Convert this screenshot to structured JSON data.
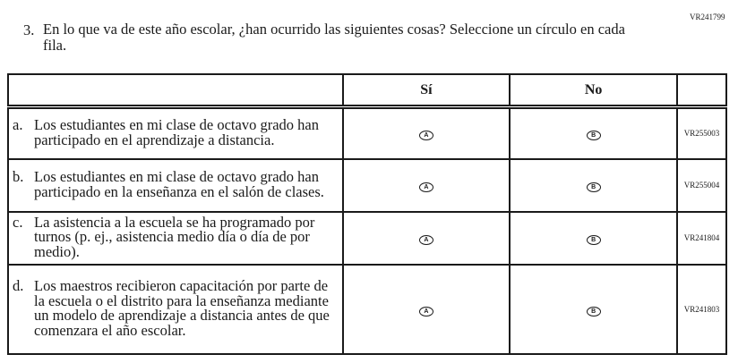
{
  "question": {
    "id": "VR241799",
    "number": "3.",
    "text": "En lo que va de este año escolar, ¿han ocurrido las siguientes cosas? Seleccione un círculo en cada fila."
  },
  "table": {
    "headers": [
      "",
      "Sí",
      "No",
      ""
    ],
    "rows": [
      {
        "letter": "a.",
        "text": "Los estudiantes en mi clase de octavo grado han participado en el aprendizaje a distancia.",
        "option_a": "A",
        "option_b": "B",
        "code": "VR255003"
      },
      {
        "letter": "b.",
        "text": "Los estudiantes en mi clase de octavo grado han participado en la enseñanza en el salón de clases.",
        "option_a": "A",
        "option_b": "B",
        "code": "VR255004"
      },
      {
        "letter": "c.",
        "text": "La asistencia a la escuela se ha programado por turnos (p. ej., asistencia medio día o día de por medio).",
        "option_a": "A",
        "option_b": "B",
        "code": "VR241804"
      },
      {
        "letter": "d.",
        "text": "Los maestros recibieron capacitación por parte de la escuela o el distrito para la enseñanza mediante un modelo de aprendizaje a distancia antes de que comenzara el año escolar.",
        "option_a": "A",
        "option_b": "B",
        "code": "VR241803"
      }
    ]
  }
}
